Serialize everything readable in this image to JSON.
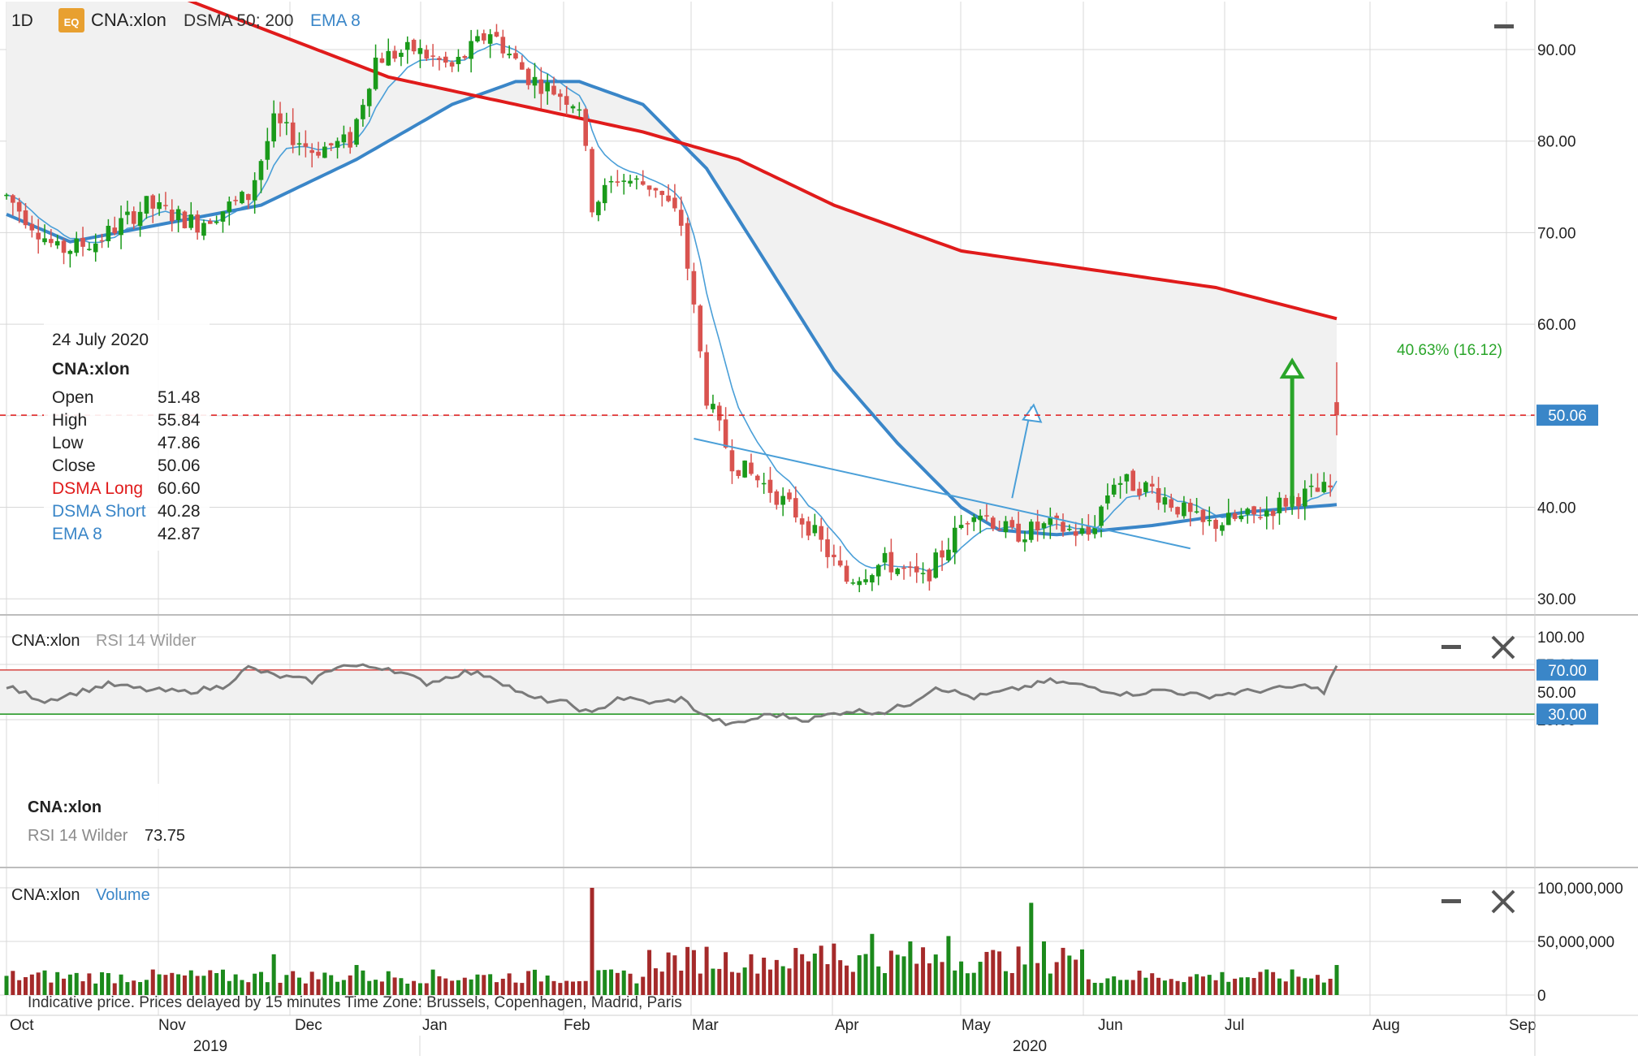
{
  "colors": {
    "up": "#1a9a1a",
    "down": "#d9534f",
    "vol_up": "#1c8a1c",
    "vol_down": "#a52a2a",
    "dsma_long": "#e01b1b",
    "dsma_short": "#3a86c8",
    "ema": "#4a9fd8",
    "rsi_line": "#7a7a7a",
    "rsi_upper": "#d9534f",
    "rsi_lower": "#2a9a2a",
    "grid": "#d8d8d8",
    "shade": "#f1f1f1",
    "arrow_green": "#2aa52a",
    "arrow_blue": "#4a9fd8",
    "label_blue_bg": "#3a86c8",
    "eq_badge": "#e8a030"
  },
  "toolbar": {
    "interval": "1D",
    "eq_badge": "EQ",
    "symbol": "CNA:xlon",
    "dsma": "DSMA 50; 200",
    "ema": "EMA 8"
  },
  "info_box": {
    "date": "24 July 2020",
    "symbol": "CNA:xlon",
    "rows": [
      {
        "label": "Open",
        "value": "51.48",
        "color": "#222222"
      },
      {
        "label": "High",
        "value": "55.84",
        "color": "#222222"
      },
      {
        "label": "Low",
        "value": "47.86",
        "color": "#222222"
      },
      {
        "label": "Close",
        "value": "50.06",
        "color": "#222222"
      },
      {
        "label": "DSMA Long",
        "value": "60.60",
        "color": "#e01b1b"
      },
      {
        "label": "DSMA Short",
        "value": "40.28",
        "color": "#3a86c8"
      },
      {
        "label": "EMA 8",
        "value": "42.87",
        "color": "#3a86c8"
      }
    ]
  },
  "annotations": {
    "gain_label": "40.63% (16.12)",
    "last_price_label": "50.06",
    "footer_note": "Indicative price. Prices delayed by 15 minutes    Time Zone: Brussels, Copenhagen, Madrid, Paris"
  },
  "rsi_panel": {
    "symbol": "CNA:xlon",
    "indicator": "RSI 14 Wilder",
    "box_symbol": "CNA:xlon",
    "box_label": "RSI 14 Wilder",
    "box_value": "73.75",
    "upper_label": "70.00",
    "lower_label": "30.00"
  },
  "volume_panel": {
    "symbol": "CNA:xlon",
    "indicator": "Volume"
  },
  "x_axis": {
    "months": [
      "Oct",
      "Nov",
      "Dec",
      "Jan",
      "Feb",
      "Mar",
      "Apr",
      "May",
      "Jun",
      "Jul",
      "Aug",
      "Sep"
    ],
    "years": [
      "2019",
      "2020"
    ]
  },
  "chart_data": [
    {
      "type": "candlestick",
      "name": "price",
      "y_ticks": [
        "90.00",
        "80.00",
        "70.00",
        "60.00",
        "50.00",
        "40.00",
        "30.00"
      ],
      "ylim": [
        28,
        95
      ],
      "anchors": [
        {
          "t": 0,
          "p": 74
        },
        {
          "t": 8,
          "p": 68
        },
        {
          "t": 14,
          "p": 69
        },
        {
          "t": 22,
          "p": 73
        },
        {
          "t": 30,
          "p": 71
        },
        {
          "t": 38,
          "p": 74
        },
        {
          "t": 42,
          "p": 82
        },
        {
          "t": 48,
          "p": 79
        },
        {
          "t": 54,
          "p": 80
        },
        {
          "t": 58,
          "p": 89
        },
        {
          "t": 64,
          "p": 90
        },
        {
          "t": 70,
          "p": 88
        },
        {
          "t": 76,
          "p": 92
        },
        {
          "t": 82,
          "p": 87
        },
        {
          "t": 90,
          "p": 84
        },
        {
          "t": 92,
          "p": 73
        },
        {
          "t": 96,
          "p": 76
        },
        {
          "t": 102,
          "p": 75
        },
        {
          "t": 106,
          "p": 71
        },
        {
          "t": 110,
          "p": 52
        },
        {
          "t": 114,
          "p": 45
        },
        {
          "t": 120,
          "p": 42
        },
        {
          "t": 126,
          "p": 38
        },
        {
          "t": 132,
          "p": 32
        },
        {
          "t": 138,
          "p": 34
        },
        {
          "t": 144,
          "p": 32
        },
        {
          "t": 148,
          "p": 36
        },
        {
          "t": 152,
          "p": 40
        },
        {
          "t": 158,
          "p": 37
        },
        {
          "t": 164,
          "p": 38
        },
        {
          "t": 170,
          "p": 37
        },
        {
          "t": 174,
          "p": 43
        },
        {
          "t": 180,
          "p": 42
        },
        {
          "t": 188,
          "p": 38
        },
        {
          "t": 196,
          "p": 39
        },
        {
          "t": 202,
          "p": 41
        },
        {
          "t": 208,
          "p": 42
        },
        {
          "t": 209,
          "p": 50.06
        }
      ],
      "last_candle": {
        "open": 51.48,
        "high": 55.84,
        "low": 47.86,
        "close": 50.06
      },
      "dsma_long": [
        {
          "t": 0,
          "p": 103
        },
        {
          "t": 30,
          "p": 95
        },
        {
          "t": 60,
          "p": 87
        },
        {
          "t": 80,
          "p": 84
        },
        {
          "t": 100,
          "p": 81
        },
        {
          "t": 115,
          "p": 78
        },
        {
          "t": 130,
          "p": 73
        },
        {
          "t": 150,
          "p": 68
        },
        {
          "t": 170,
          "p": 66
        },
        {
          "t": 190,
          "p": 64
        },
        {
          "t": 209,
          "p": 60.6
        }
      ],
      "dsma_short": [
        {
          "t": 0,
          "p": 72
        },
        {
          "t": 10,
          "p": 69
        },
        {
          "t": 25,
          "p": 71
        },
        {
          "t": 40,
          "p": 73
        },
        {
          "t": 55,
          "p": 78
        },
        {
          "t": 70,
          "p": 84
        },
        {
          "t": 80,
          "p": 86.5
        },
        {
          "t": 90,
          "p": 86.5
        },
        {
          "t": 100,
          "p": 84
        },
        {
          "t": 110,
          "p": 77
        },
        {
          "t": 120,
          "p": 66
        },
        {
          "t": 130,
          "p": 55
        },
        {
          "t": 140,
          "p": 47
        },
        {
          "t": 150,
          "p": 40
        },
        {
          "t": 156,
          "p": 37.5
        },
        {
          "t": 165,
          "p": 37
        },
        {
          "t": 180,
          "p": 38
        },
        {
          "t": 195,
          "p": 39.5
        },
        {
          "t": 209,
          "p": 40.28
        }
      ],
      "ema_last": 42.87,
      "trendline": {
        "start": {
          "t": 108,
          "p": 47.5
        },
        "end": {
          "t": 186,
          "p": 35.5
        }
      },
      "breakout_arrow": {
        "from": {
          "t": 158,
          "p": 41
        },
        "to": {
          "t": 161,
          "p": 51
        }
      },
      "gain_arrow": {
        "from": 40,
        "to": 56,
        "t": 202
      },
      "shaded_region": "between DSMA Long and DSMA Short"
    },
    {
      "type": "line",
      "name": "RSI 14 Wilder",
      "y_ticks": [
        "100.00",
        "75.00",
        "50.00",
        "25.00"
      ],
      "ylim": [
        0,
        100
      ],
      "levels": {
        "upper": 70,
        "lower": 30
      },
      "anchors": [
        {
          "t": 0,
          "p": 55
        },
        {
          "t": 6,
          "p": 42
        },
        {
          "t": 10,
          "p": 48
        },
        {
          "t": 16,
          "p": 57
        },
        {
          "t": 22,
          "p": 52
        },
        {
          "t": 28,
          "p": 50
        },
        {
          "t": 34,
          "p": 55
        },
        {
          "t": 38,
          "p": 72
        },
        {
          "t": 42,
          "p": 65
        },
        {
          "t": 48,
          "p": 60
        },
        {
          "t": 52,
          "p": 74
        },
        {
          "t": 60,
          "p": 72
        },
        {
          "t": 66,
          "p": 58
        },
        {
          "t": 72,
          "p": 68
        },
        {
          "t": 76,
          "p": 65
        },
        {
          "t": 82,
          "p": 45
        },
        {
          "t": 88,
          "p": 40
        },
        {
          "t": 92,
          "p": 30
        },
        {
          "t": 96,
          "p": 45
        },
        {
          "t": 102,
          "p": 40
        },
        {
          "t": 106,
          "p": 44
        },
        {
          "t": 110,
          "p": 27
        },
        {
          "t": 114,
          "p": 20
        },
        {
          "t": 120,
          "p": 30
        },
        {
          "t": 126,
          "p": 25
        },
        {
          "t": 132,
          "p": 33
        },
        {
          "t": 138,
          "p": 32
        },
        {
          "t": 142,
          "p": 40
        },
        {
          "t": 146,
          "p": 55
        },
        {
          "t": 152,
          "p": 45
        },
        {
          "t": 158,
          "p": 52
        },
        {
          "t": 164,
          "p": 60
        },
        {
          "t": 170,
          "p": 55
        },
        {
          "t": 176,
          "p": 48
        },
        {
          "t": 182,
          "p": 52
        },
        {
          "t": 188,
          "p": 46
        },
        {
          "t": 194,
          "p": 50
        },
        {
          "t": 200,
          "p": 53
        },
        {
          "t": 205,
          "p": 56
        },
        {
          "t": 207,
          "p": 49
        },
        {
          "t": 209,
          "p": 73.75
        }
      ]
    },
    {
      "type": "bar",
      "name": "Volume",
      "y_ticks": [
        "100,000,000",
        "50,000,000",
        "0"
      ],
      "ylim": [
        0,
        100000000
      ],
      "baseline_level": 15000000,
      "spikes": [
        {
          "t": 42,
          "v": 38000000
        },
        {
          "t": 55,
          "v": 28000000
        },
        {
          "t": 92,
          "v": 100000000
        },
        {
          "t": 101,
          "v": 42000000
        },
        {
          "t": 110,
          "v": 45000000
        },
        {
          "t": 117,
          "v": 38000000
        },
        {
          "t": 128,
          "v": 46000000
        },
        {
          "t": 130,
          "v": 48000000
        },
        {
          "t": 136,
          "v": 57000000
        },
        {
          "t": 142,
          "v": 50000000
        },
        {
          "t": 148,
          "v": 55000000
        },
        {
          "t": 161,
          "v": 86000000
        },
        {
          "t": 163,
          "v": 50000000
        },
        {
          "t": 166,
          "v": 44000000
        },
        {
          "t": 209,
          "v": 28000000
        }
      ]
    }
  ]
}
